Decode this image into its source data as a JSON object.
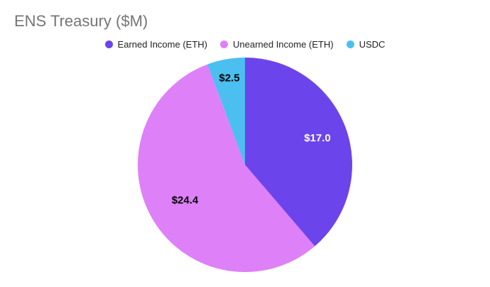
{
  "chart_data": {
    "type": "pie",
    "title": "ENS Treasury ($M)",
    "legend_position": "top",
    "series": [
      {
        "name": "Earned Income (ETH)",
        "value": 17.0,
        "label": "$17.0",
        "color": "#6c44ec",
        "label_color": "#ffffff"
      },
      {
        "name": "Unearned Income (ETH)",
        "value": 24.4,
        "label": "$24.4",
        "color": "#de80f8",
        "label_color": "#000000"
      },
      {
        "name": "USDC",
        "value": 2.5,
        "label": "$2.5",
        "color": "#4bbff0",
        "label_color": "#000000"
      }
    ]
  }
}
